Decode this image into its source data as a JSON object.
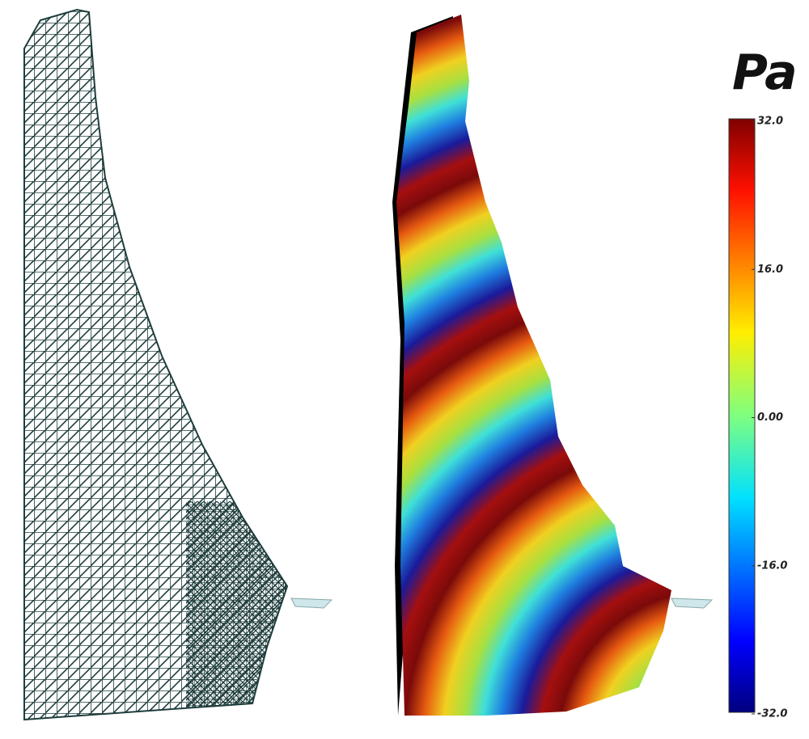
{
  "colorbar": {
    "title": "Pa",
    "range": [
      -32,
      32
    ],
    "ticks": [
      {
        "value": 32,
        "label": "32.0"
      },
      {
        "value": 16,
        "label": "16.0"
      },
      {
        "value": 0,
        "label": "0.00"
      },
      {
        "value": -16,
        "label": "-16.0"
      },
      {
        "value": -32,
        "label": "-32.0"
      }
    ]
  }
}
